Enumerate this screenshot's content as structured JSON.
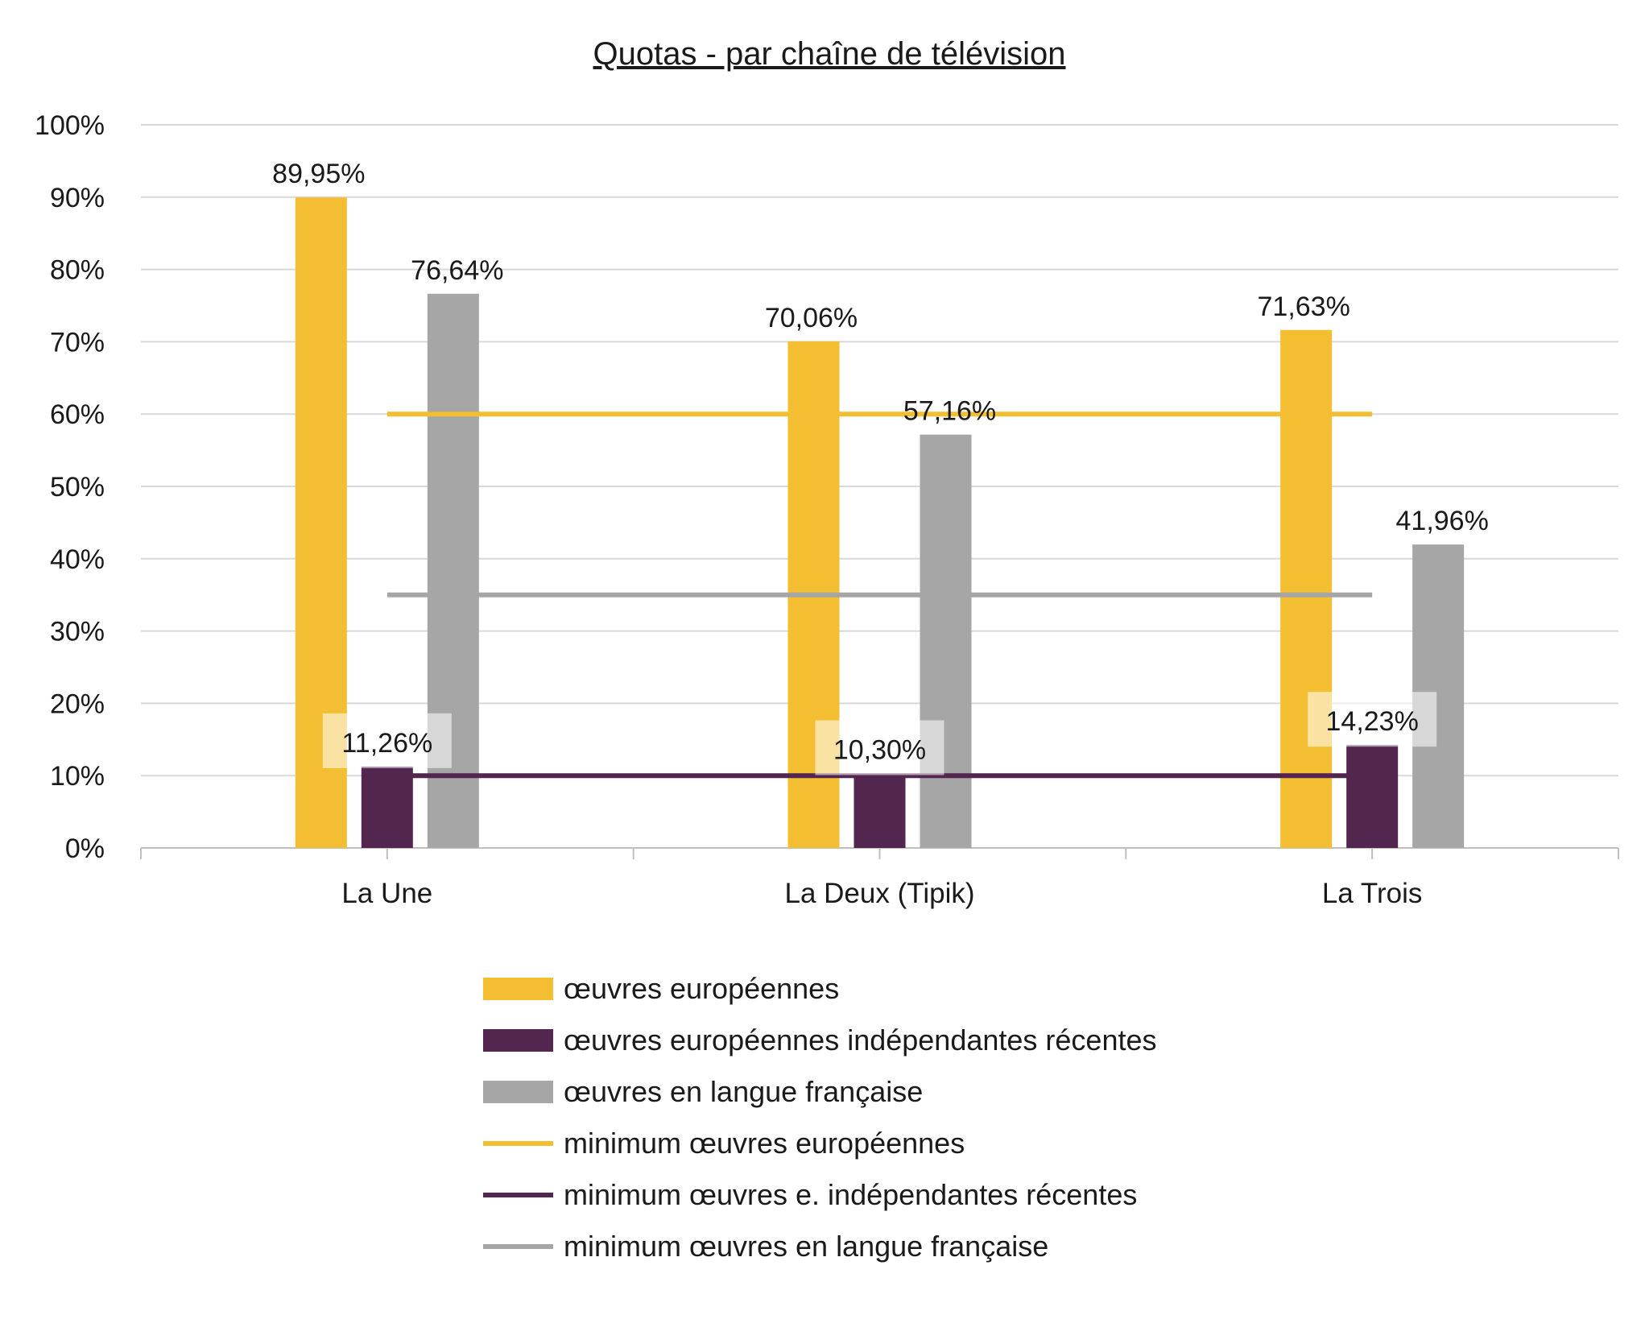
{
  "chart_data": {
    "type": "bar",
    "title": "Quotas - par chaîne de télévision",
    "categories": [
      "La Une",
      "La Deux (Tipik)",
      "La Trois"
    ],
    "series": [
      {
        "name": "œuvres européennes",
        "kind": "bar",
        "color": "#F4BE32",
        "values": [
          89.95,
          70.06,
          71.63
        ],
        "labels": [
          "89,95%",
          "70,06%",
          "71,63%"
        ]
      },
      {
        "name": "œuvres européennes indépendantes récentes",
        "kind": "bar",
        "color": "#52264E",
        "values": [
          11.26,
          10.3,
          14.23
        ],
        "labels": [
          "11,26%",
          "10,30%",
          "14,23%"
        ]
      },
      {
        "name": "œuvres en langue française",
        "kind": "bar",
        "color": "#A6A6A6",
        "values": [
          76.64,
          57.16,
          41.96
        ],
        "labels": [
          "76,64%",
          "57,16%",
          "41,96%"
        ]
      },
      {
        "name": "minimum œuvres européennes",
        "kind": "line",
        "color": "#F4BE32",
        "values": [
          60,
          60,
          60
        ]
      },
      {
        "name": "minimum œuvres e. indépendantes récentes",
        "kind": "line",
        "color": "#52264E",
        "values": [
          10,
          10,
          10
        ]
      },
      {
        "name": "minimum œuvres en langue française",
        "kind": "line",
        "color": "#A6A6A6",
        "values": [
          35,
          35,
          35
        ]
      }
    ],
    "y_ticks": [
      "0%",
      "10%",
      "20%",
      "30%",
      "40%",
      "50%",
      "60%",
      "70%",
      "80%",
      "90%",
      "100%"
    ],
    "ylim": [
      0,
      100
    ],
    "grid": true,
    "legend_position": "bottom"
  }
}
